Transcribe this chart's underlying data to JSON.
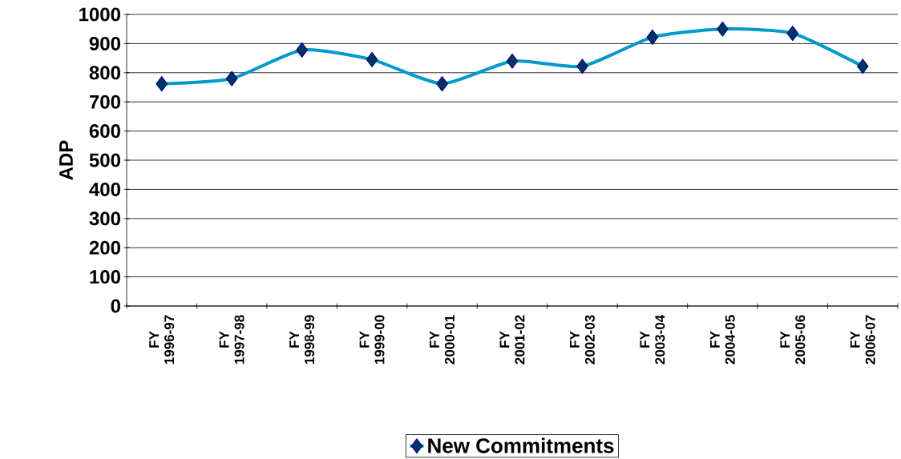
{
  "chart_data": {
    "type": "line",
    "ylabel": "ADP",
    "categories": [
      "FY 1996-97",
      "FY 1997-98",
      "FY 1998-99",
      "FY 1999-00",
      "FY 2000-01",
      "FY 2001-02",
      "FY 2002-03",
      "FY 2003-04",
      "FY 2004-05",
      "FY 2005-06",
      "FY 2006-07"
    ],
    "series": [
      {
        "name": "New Commitments",
        "color": "#0099cc",
        "values": [
          762,
          780,
          878,
          845,
          762,
          840,
          822,
          922,
          950,
          935,
          822
        ]
      }
    ],
    "ylim": [
      0,
      1000
    ],
    "yticks": [
      0,
      100,
      200,
      300,
      400,
      500,
      600,
      700,
      800,
      900,
      1000
    ],
    "grid": "y",
    "legend": "bottom",
    "marker": "diamond",
    "line_style": "solid"
  }
}
